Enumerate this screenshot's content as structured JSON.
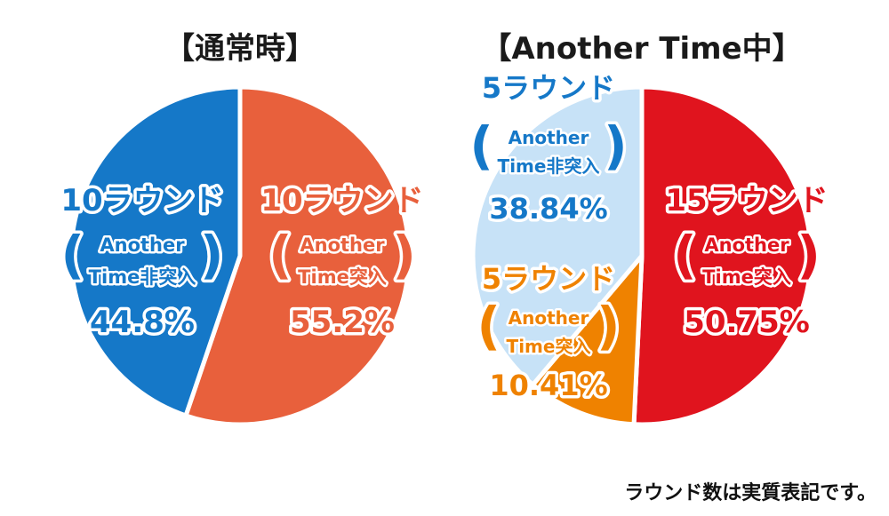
{
  "chart_data": [
    {
      "type": "pie",
      "title": "【通常時】",
      "slices": [
        {
          "round": "10ラウンド",
          "desc_lines": [
            "Another",
            "Time突入"
          ],
          "value": 55.2,
          "percent_label": "55.2%",
          "color": "#E8603C"
        },
        {
          "round": "10ラウンド",
          "desc_lines": [
            "Another",
            "Time非突入"
          ],
          "value": 44.8,
          "percent_label": "44.8%",
          "color": "#1578C8"
        }
      ]
    },
    {
      "type": "pie",
      "title": "【Another Time中】",
      "slices": [
        {
          "round": "15ラウンド",
          "desc_lines": [
            "Another",
            "Time突入"
          ],
          "value": 50.75,
          "percent_label": "50.75%",
          "color": "#E0141E"
        },
        {
          "round": "5ラウンド",
          "desc_lines": [
            "Another",
            "Time突入"
          ],
          "value": 10.41,
          "percent_label": "10.41%",
          "color": "#EF8200"
        },
        {
          "round": "5ラウンド",
          "desc_lines": [
            "Another",
            "Time非突入"
          ],
          "value": 38.84,
          "percent_label": "38.84%",
          "color": "#C7E2F7",
          "text_color": "#1578C8"
        }
      ]
    }
  ],
  "footnote": "ラウンド数は実質表記です。"
}
